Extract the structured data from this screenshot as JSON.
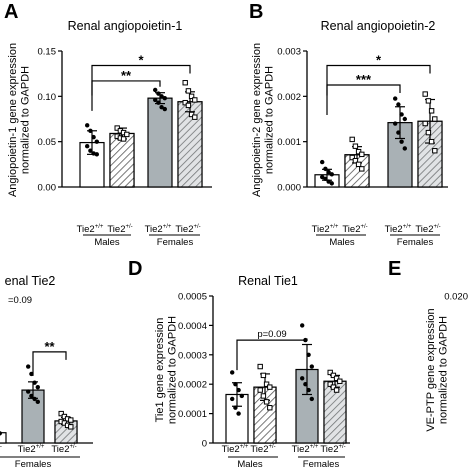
{
  "figure": {
    "hatch_color": "#555555",
    "male_wt_fill": "#ffffff",
    "female_fill": "#a9b1b5",
    "text_color": "#000000"
  },
  "chart_data": [
    {
      "id": "A",
      "type": "bar",
      "panel_letter": "A",
      "title": "Renal angiopoietin-1",
      "ylabel": [
        "Angiopoietin-1 gene expression",
        "normalized to GAPDH"
      ],
      "ylim": [
        0,
        0.15
      ],
      "yticks": [
        0,
        0.05,
        0.1,
        0.15
      ],
      "ytick_labels": [
        "0.00",
        "0.05",
        "0.10",
        "0.15"
      ],
      "categories": [
        "Tie2+/+",
        "Tie2+/-",
        "Tie2+/+",
        "Tie2+/-"
      ],
      "category_labels": [
        [
          "Tie2",
          "+/+"
        ],
        [
          "Tie2",
          "+/-"
        ],
        [
          "Tie2",
          "+/+"
        ],
        [
          "Tie2",
          "+/-"
        ]
      ],
      "groups": [
        "Males",
        "Females"
      ],
      "values": [
        0.049,
        0.059,
        0.098,
        0.094
      ],
      "errors": [
        0.013,
        0.006,
        0.006,
        0.011
      ],
      "points": [
        [
          0.068,
          0.062,
          0.055,
          0.05,
          0.045,
          0.04,
          0.037,
          0.036
        ],
        [
          0.065,
          0.062,
          0.06,
          0.058,
          0.056,
          0.054,
          0.053
        ],
        [
          0.107,
          0.103,
          0.1,
          0.098,
          0.096,
          0.093,
          0.088,
          0.086
        ],
        [
          0.115,
          0.106,
          0.1,
          0.096,
          0.093,
          0.09,
          0.08,
          0.077
        ]
      ],
      "brackets": [
        {
          "from": 0,
          "to": 2,
          "y": 0.117,
          "label": "**"
        },
        {
          "from": 0,
          "to": 3,
          "y": 0.134,
          "label": "*"
        }
      ]
    },
    {
      "id": "B",
      "type": "bar",
      "panel_letter": "B",
      "title": "Renal angiopoietin-2",
      "ylabel": [
        "Angiopoietin-2 gene expression",
        "normalized to GAPDH"
      ],
      "ylim": [
        0,
        0.003
      ],
      "yticks": [
        0,
        0.001,
        0.002,
        0.003
      ],
      "ytick_labels": [
        "0.000",
        "0.001",
        "0.002",
        "0.003"
      ],
      "categories": [
        "Tie2+/+",
        "Tie2+/-",
        "Tie2+/+",
        "Tie2+/-"
      ],
      "category_labels": [
        [
          "Tie2",
          "+/+"
        ],
        [
          "Tie2",
          "+/-"
        ],
        [
          "Tie2",
          "+/+"
        ],
        [
          "Tie2",
          "+/-"
        ]
      ],
      "groups": [
        "Males",
        "Females"
      ],
      "values": [
        0.00027,
        0.00071,
        0.00142,
        0.00145
      ],
      "errors": [
        0.00012,
        0.00018,
        0.00035,
        0.00048
      ],
      "points": [
        [
          0.00055,
          0.0004,
          0.00033,
          0.00028,
          0.00022,
          0.00018,
          0.00012,
          8e-05
        ],
        [
          0.00105,
          0.0009,
          0.00078,
          0.00072,
          0.00065,
          0.00058,
          0.0005,
          0.0004
        ],
        [
          0.00195,
          0.00182,
          0.0016,
          0.0015,
          0.0014,
          0.0012,
          0.001,
          0.00085
        ],
        [
          0.00205,
          0.0019,
          0.00168,
          0.0015,
          0.0014,
          0.0012,
          0.001,
          0.0008
        ]
      ],
      "brackets": [
        {
          "from": 0,
          "to": 2,
          "y": 0.00225,
          "label": "***"
        },
        {
          "from": 0,
          "to": 3,
          "y": 0.00268,
          "label": "*"
        }
      ]
    },
    {
      "id": "C",
      "type": "bar",
      "panel_letter": "",
      "title": "enal Tie2",
      "ylabel": [],
      "ylim": [
        0,
        0.05
      ],
      "yticks": [],
      "ytick_labels": [],
      "categories": [
        "Tie2+/+",
        "Tie2+/+",
        "Tie2+/-"
      ],
      "category_labels": [
        [
          "e2",
          "+/-"
        ],
        [
          "Tie2",
          "+/+"
        ],
        [
          "Tie2",
          "+/-"
        ]
      ],
      "groups": [
        "Females"
      ],
      "values": [
        0.0035,
        0.018,
        0.0075
      ],
      "errors": [
        0.0008,
        0.0028,
        0.0012
      ],
      "points": [
        [
          0.005,
          0.0042,
          0.0038,
          0.0033,
          0.0028
        ],
        [
          0.026,
          0.0235,
          0.0205,
          0.019,
          0.0175,
          0.016,
          0.015,
          0.014
        ],
        [
          0.01,
          0.009,
          0.0082,
          0.0078,
          0.0073,
          0.0068,
          0.006,
          0.0055
        ]
      ],
      "brackets": [
        {
          "from": 1,
          "to": 2,
          "y": 0.031,
          "label": "**"
        }
      ],
      "annotations": [
        {
          "text": "=0.09"
        }
      ]
    },
    {
      "id": "D",
      "type": "bar",
      "panel_letter": "D",
      "title": "Renal Tie1",
      "ylabel": [
        "Tie1 gene expression",
        "normalized to GAPDH"
      ],
      "ylim": [
        0,
        0.0005
      ],
      "yticks": [
        0,
        0.0001,
        0.0002,
        0.0003,
        0.0004,
        0.0005
      ],
      "ytick_labels": [
        "0",
        "0.0001",
        "0.0002",
        "0.0003",
        "0.0004",
        "0.0005"
      ],
      "categories": [
        "Tie2+/+",
        "Tie2+/-",
        "Tie2+/+",
        "Tie2+/-"
      ],
      "category_labels": [
        [
          "Tie2",
          "+/+"
        ],
        [
          "Tie2",
          "+/-"
        ],
        [
          "Tie2",
          "+/+"
        ],
        [
          "Tie2",
          "+/-"
        ]
      ],
      "groups": [
        "Males",
        "Females"
      ],
      "values": [
        0.000165,
        0.00019,
        0.00025,
        0.00021
      ],
      "errors": [
        4e-05,
        4.5e-05,
        8.5e-05,
        2e-05
      ],
      "points": [
        [
          0.00024,
          0.0002,
          0.00018,
          0.00016,
          0.00015,
          0.00012,
          0.0001
        ],
        [
          0.00026,
          0.00023,
          0.0002,
          0.00019,
          0.00018,
          0.00016,
          0.00014,
          0.00012
        ],
        [
          0.0004,
          0.00035,
          0.0003,
          0.00026,
          0.00022,
          0.0002,
          0.00018,
          0.00015
        ],
        [
          0.00024,
          0.00023,
          0.00022,
          0.00021,
          0.0002,
          0.00019,
          0.00018
        ]
      ],
      "brackets": [
        {
          "from": 0,
          "to": 2,
          "y": 0.00035,
          "label": "p=0.09"
        }
      ]
    },
    {
      "id": "E",
      "type": "bar",
      "panel_letter": "E",
      "title": "",
      "ylabel": [
        "VE-PTP gene expression",
        "normalized to GAPDH"
      ],
      "ylim": [
        0,
        0.02
      ],
      "yticks": [
        0.02
      ],
      "ytick_labels": [
        "0.020"
      ],
      "categories": [],
      "category_labels": [],
      "groups": [],
      "values": [],
      "errors": [],
      "points": [],
      "brackets": []
    }
  ]
}
